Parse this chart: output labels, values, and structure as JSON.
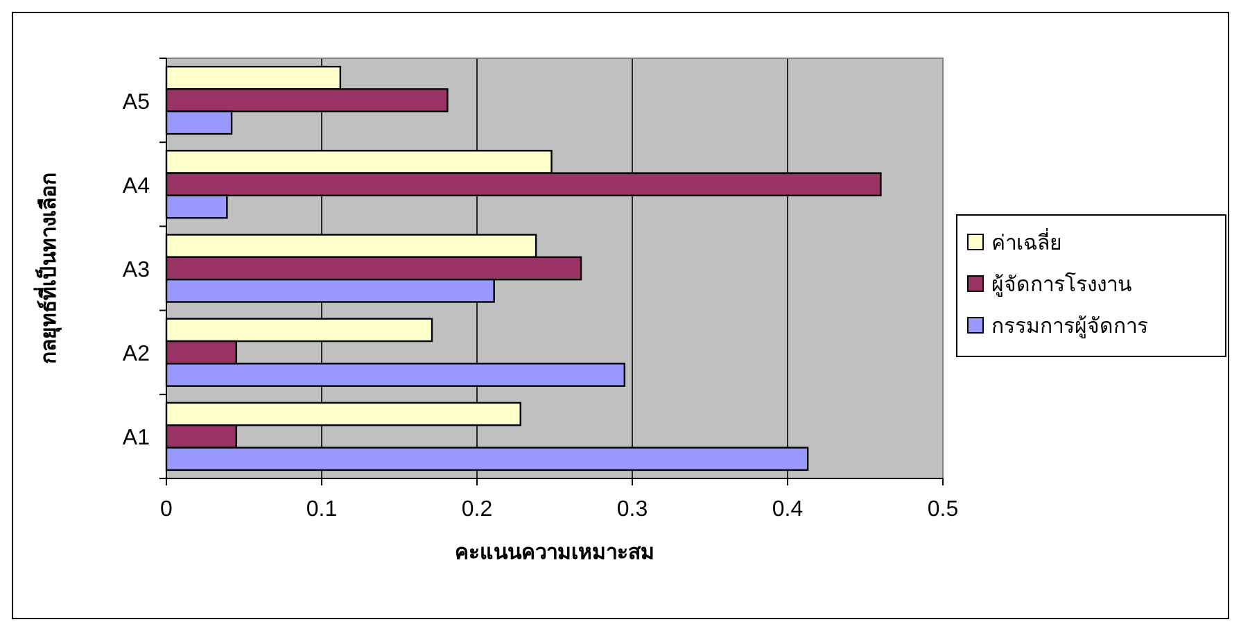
{
  "chart_data": {
    "type": "bar",
    "orientation": "horizontal",
    "xlabel": "คะแนนความเหมาะสม",
    "ylabel": "กลยุทธ์ที่เป็นทางเลือก",
    "categories": [
      "A5",
      "A4",
      "A3",
      "A2",
      "A1"
    ],
    "series": [
      {
        "name": "ค่าเฉลี่ย",
        "color": "#ffffcc",
        "values": [
          0.112,
          0.248,
          0.238,
          0.171,
          0.228
        ]
      },
      {
        "name": "ผู้จัดการโรงงาน",
        "color": "#993366",
        "values": [
          0.181,
          0.46,
          0.267,
          0.045,
          0.045
        ]
      },
      {
        "name": "กรรมการผู้จัดการ",
        "color": "#9999ff",
        "values": [
          0.042,
          0.039,
          0.211,
          0.295,
          0.413
        ]
      }
    ],
    "xlim": [
      0,
      0.5
    ],
    "xticks": [
      0,
      0.1,
      0.2,
      0.3,
      0.4,
      0.5
    ],
    "grid": "x",
    "legend": "right"
  }
}
